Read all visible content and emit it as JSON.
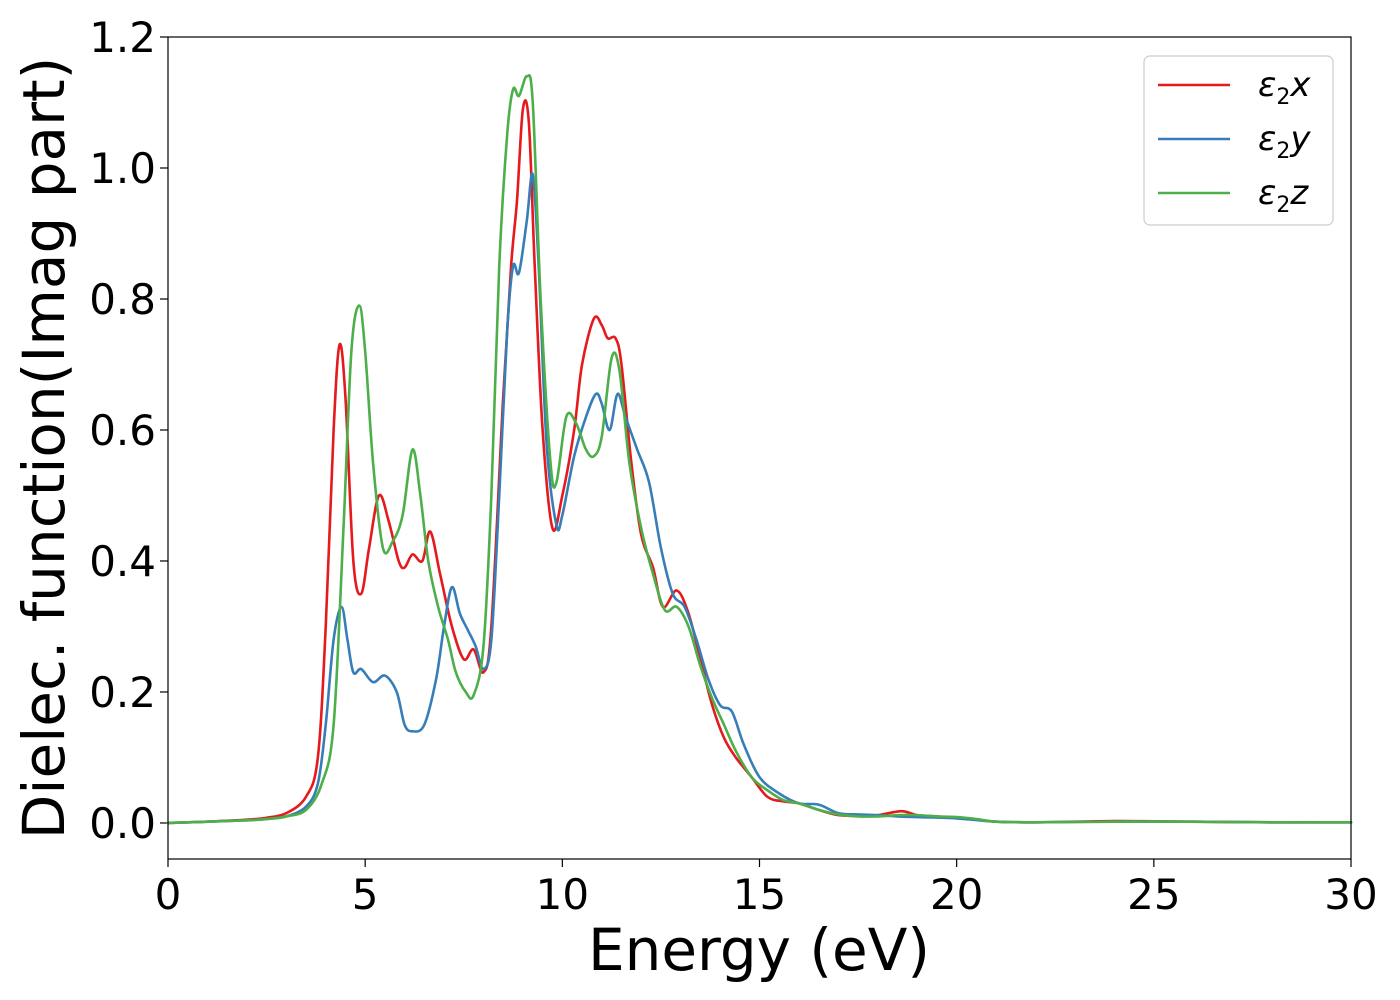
{
  "chart_data": {
    "type": "line",
    "title": "",
    "xlabel": "Energy (eV)",
    "ylabel": "Dielec. function(Imag part)",
    "xlim": [
      0,
      30
    ],
    "ylim": [
      -0.055,
      1.2
    ],
    "x_ticks": [
      0,
      5,
      10,
      15,
      20,
      25,
      30
    ],
    "x_tick_labels": [
      "0",
      "5",
      "10",
      "15",
      "20",
      "25",
      "30"
    ],
    "y_ticks": [
      0.0,
      0.2,
      0.4,
      0.6,
      0.8,
      1.0,
      1.2
    ],
    "y_tick_labels": [
      "0.0",
      "0.2",
      "0.4",
      "0.6",
      "0.8",
      "1.0",
      "1.2"
    ],
    "grid": false,
    "legend_position": "top-right",
    "series": [
      {
        "name": "ε2x",
        "legend_main": "ε",
        "legend_sub": "2",
        "legend_var": "x",
        "color": "#e41a1c",
        "points": [
          [
            0,
            0
          ],
          [
            1,
            0.002
          ],
          [
            2,
            0.005
          ],
          [
            2.5,
            0.008
          ],
          [
            3,
            0.015
          ],
          [
            3.5,
            0.04
          ],
          [
            3.8,
            0.1
          ],
          [
            4.0,
            0.3
          ],
          [
            4.2,
            0.6
          ],
          [
            4.35,
            0.73
          ],
          [
            4.5,
            0.65
          ],
          [
            4.7,
            0.4
          ],
          [
            4.9,
            0.35
          ],
          [
            5.1,
            0.42
          ],
          [
            5.35,
            0.5
          ],
          [
            5.6,
            0.46
          ],
          [
            5.85,
            0.4
          ],
          [
            6.0,
            0.39
          ],
          [
            6.2,
            0.41
          ],
          [
            6.45,
            0.4
          ],
          [
            6.65,
            0.445
          ],
          [
            6.9,
            0.38
          ],
          [
            7.2,
            0.3
          ],
          [
            7.5,
            0.25
          ],
          [
            7.75,
            0.265
          ],
          [
            8.0,
            0.23
          ],
          [
            8.2,
            0.3
          ],
          [
            8.5,
            0.65
          ],
          [
            8.7,
            0.85
          ],
          [
            8.85,
            0.95
          ],
          [
            9.0,
            1.09
          ],
          [
            9.15,
            1.07
          ],
          [
            9.3,
            0.85
          ],
          [
            9.5,
            0.6
          ],
          [
            9.75,
            0.45
          ],
          [
            10.0,
            0.5
          ],
          [
            10.3,
            0.6
          ],
          [
            10.5,
            0.7
          ],
          [
            10.8,
            0.77
          ],
          [
            11.0,
            0.76
          ],
          [
            11.15,
            0.74
          ],
          [
            11.35,
            0.74
          ],
          [
            11.5,
            0.7
          ],
          [
            11.75,
            0.55
          ],
          [
            12.0,
            0.44
          ],
          [
            12.3,
            0.39
          ],
          [
            12.55,
            0.33
          ],
          [
            12.9,
            0.355
          ],
          [
            13.2,
            0.32
          ],
          [
            13.5,
            0.25
          ],
          [
            13.8,
            0.18
          ],
          [
            14.1,
            0.13
          ],
          [
            14.4,
            0.1
          ],
          [
            14.8,
            0.07
          ],
          [
            15.2,
            0.04
          ],
          [
            15.6,
            0.033
          ],
          [
            16.0,
            0.03
          ],
          [
            16.5,
            0.02
          ],
          [
            17.0,
            0.012
          ],
          [
            17.5,
            0.011
          ],
          [
            18.0,
            0.012
          ],
          [
            18.6,
            0.018
          ],
          [
            19.0,
            0.012
          ],
          [
            19.5,
            0.01
          ],
          [
            20.0,
            0.008
          ],
          [
            20.5,
            0.005
          ],
          [
            21.0,
            0.002
          ],
          [
            22.0,
            0.001
          ],
          [
            24.0,
            0.003
          ],
          [
            26.0,
            0.002
          ],
          [
            28.0,
            0.001
          ],
          [
            30.0,
            0.001
          ]
        ]
      },
      {
        "name": "ε2y",
        "legend_main": "ε",
        "legend_sub": "2",
        "legend_var": "y",
        "color": "#377eb8",
        "points": [
          [
            0,
            0
          ],
          [
            1,
            0.002
          ],
          [
            2,
            0.004
          ],
          [
            2.5,
            0.006
          ],
          [
            3,
            0.01
          ],
          [
            3.5,
            0.025
          ],
          [
            3.8,
            0.06
          ],
          [
            4.0,
            0.15
          ],
          [
            4.2,
            0.28
          ],
          [
            4.4,
            0.33
          ],
          [
            4.55,
            0.28
          ],
          [
            4.7,
            0.23
          ],
          [
            4.9,
            0.235
          ],
          [
            5.2,
            0.215
          ],
          [
            5.5,
            0.225
          ],
          [
            5.8,
            0.2
          ],
          [
            6.0,
            0.15
          ],
          [
            6.2,
            0.14
          ],
          [
            6.5,
            0.15
          ],
          [
            6.8,
            0.22
          ],
          [
            7.0,
            0.3
          ],
          [
            7.2,
            0.36
          ],
          [
            7.4,
            0.32
          ],
          [
            7.6,
            0.295
          ],
          [
            7.8,
            0.27
          ],
          [
            8.0,
            0.235
          ],
          [
            8.2,
            0.28
          ],
          [
            8.4,
            0.5
          ],
          [
            8.6,
            0.75
          ],
          [
            8.75,
            0.85
          ],
          [
            8.9,
            0.84
          ],
          [
            9.1,
            0.92
          ],
          [
            9.25,
            0.99
          ],
          [
            9.4,
            0.85
          ],
          [
            9.6,
            0.58
          ],
          [
            9.85,
            0.455
          ],
          [
            10.0,
            0.47
          ],
          [
            10.3,
            0.56
          ],
          [
            10.6,
            0.62
          ],
          [
            10.85,
            0.655
          ],
          [
            11.0,
            0.64
          ],
          [
            11.2,
            0.6
          ],
          [
            11.4,
            0.655
          ],
          [
            11.6,
            0.62
          ],
          [
            11.9,
            0.57
          ],
          [
            12.2,
            0.52
          ],
          [
            12.5,
            0.42
          ],
          [
            12.8,
            0.35
          ],
          [
            13.1,
            0.33
          ],
          [
            13.4,
            0.28
          ],
          [
            13.7,
            0.22
          ],
          [
            14.0,
            0.18
          ],
          [
            14.3,
            0.17
          ],
          [
            14.6,
            0.12
          ],
          [
            15.0,
            0.07
          ],
          [
            15.5,
            0.045
          ],
          [
            16.0,
            0.03
          ],
          [
            16.5,
            0.028
          ],
          [
            17.0,
            0.015
          ],
          [
            17.5,
            0.013
          ],
          [
            18.0,
            0.012
          ],
          [
            18.5,
            0.01
          ],
          [
            19.0,
            0.009
          ],
          [
            20.0,
            0.007
          ],
          [
            21.0,
            0.002
          ],
          [
            22.0,
            0.001
          ],
          [
            24.0,
            0.002
          ],
          [
            26.0,
            0.002
          ],
          [
            28.0,
            0.001
          ],
          [
            30.0,
            0.001
          ]
        ]
      },
      {
        "name": "ε2z",
        "legend_main": "ε",
        "legend_sub": "2",
        "legend_var": "z",
        "color": "#4daf4a",
        "points": [
          [
            0,
            0
          ],
          [
            1,
            0.002
          ],
          [
            2,
            0.004
          ],
          [
            2.5,
            0.006
          ],
          [
            3,
            0.01
          ],
          [
            3.5,
            0.02
          ],
          [
            3.9,
            0.06
          ],
          [
            4.2,
            0.15
          ],
          [
            4.45,
            0.45
          ],
          [
            4.65,
            0.72
          ],
          [
            4.85,
            0.79
          ],
          [
            5.0,
            0.72
          ],
          [
            5.2,
            0.55
          ],
          [
            5.45,
            0.42
          ],
          [
            5.7,
            0.43
          ],
          [
            5.95,
            0.47
          ],
          [
            6.2,
            0.57
          ],
          [
            6.4,
            0.5
          ],
          [
            6.6,
            0.4
          ],
          [
            6.85,
            0.33
          ],
          [
            7.1,
            0.28
          ],
          [
            7.3,
            0.23
          ],
          [
            7.55,
            0.2
          ],
          [
            7.75,
            0.195
          ],
          [
            8.0,
            0.27
          ],
          [
            8.2,
            0.5
          ],
          [
            8.4,
            0.85
          ],
          [
            8.6,
            1.05
          ],
          [
            8.75,
            1.12
          ],
          [
            8.9,
            1.11
          ],
          [
            9.1,
            1.14
          ],
          [
            9.25,
            1.1
          ],
          [
            9.45,
            0.8
          ],
          [
            9.7,
            0.55
          ],
          [
            9.85,
            0.52
          ],
          [
            10.1,
            0.62
          ],
          [
            10.35,
            0.61
          ],
          [
            10.6,
            0.57
          ],
          [
            10.8,
            0.56
          ],
          [
            11.0,
            0.59
          ],
          [
            11.25,
            0.71
          ],
          [
            11.45,
            0.69
          ],
          [
            11.7,
            0.55
          ],
          [
            12.0,
            0.45
          ],
          [
            12.3,
            0.38
          ],
          [
            12.6,
            0.325
          ],
          [
            12.9,
            0.33
          ],
          [
            13.2,
            0.3
          ],
          [
            13.5,
            0.24
          ],
          [
            13.8,
            0.19
          ],
          [
            14.1,
            0.15
          ],
          [
            14.4,
            0.11
          ],
          [
            14.8,
            0.07
          ],
          [
            15.2,
            0.05
          ],
          [
            15.6,
            0.035
          ],
          [
            16.0,
            0.03
          ],
          [
            16.5,
            0.02
          ],
          [
            17.0,
            0.013
          ],
          [
            17.5,
            0.01
          ],
          [
            18.0,
            0.01
          ],
          [
            18.5,
            0.012
          ],
          [
            19.0,
            0.012
          ],
          [
            19.5,
            0.01
          ],
          [
            20.0,
            0.009
          ],
          [
            20.5,
            0.006
          ],
          [
            21.0,
            0.002
          ],
          [
            22.0,
            0.001
          ],
          [
            24.0,
            0.002
          ],
          [
            26.0,
            0.002
          ],
          [
            28.0,
            0.001
          ],
          [
            30.0,
            0.001
          ]
        ]
      }
    ]
  }
}
